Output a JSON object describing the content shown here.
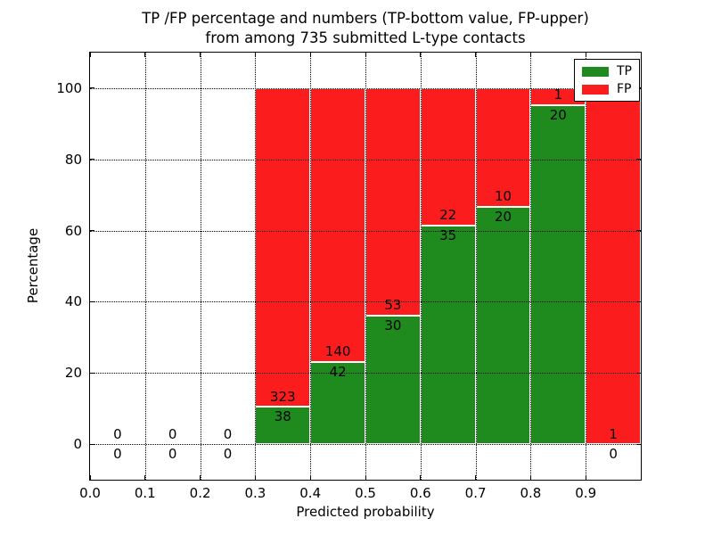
{
  "figure": {
    "title_line1": "TP /FP percentage and numbers (TP-bottom value, FP-upper)",
    "title_line2": "from among 735 submitted L-type contacts"
  },
  "chart_data": {
    "type": "bar",
    "stacked": true,
    "title": "TP /FP percentage and numbers (TP-bottom value, FP-upper) from among 735 submitted L-type contacts",
    "xlabel": "Predicted probability",
    "ylabel": "Percentage",
    "total_submitted": 735,
    "xlim": [
      0.0,
      1.0
    ],
    "ylim": [
      -10,
      110
    ],
    "x_ticks": [
      0.0,
      0.1,
      0.2,
      0.3,
      0.4,
      0.5,
      0.6,
      0.7,
      0.8,
      0.9
    ],
    "x_tick_labels": [
      "0.0",
      "0.1",
      "0.2",
      "0.3",
      "0.4",
      "0.5",
      "0.6",
      "0.7",
      "0.8",
      "0.9"
    ],
    "y_ticks": [
      0,
      20,
      40,
      60,
      80,
      100
    ],
    "y_tick_labels": [
      "0",
      "20",
      "40",
      "60",
      "80",
      "100"
    ],
    "grid": true,
    "legend": {
      "position": "upper right",
      "entries": [
        {
          "label": "TP",
          "color": "#1f8b1f"
        },
        {
          "label": "FP",
          "color": "#fb1d1d"
        }
      ]
    },
    "colors": {
      "tp": "#1f8b1f",
      "fp": "#fb1d1d",
      "bar_edge": "#ffffff"
    },
    "bins": [
      {
        "range": [
          0.0,
          0.1
        ],
        "tp": 0,
        "fp": 0
      },
      {
        "range": [
          0.1,
          0.2
        ],
        "tp": 0,
        "fp": 0
      },
      {
        "range": [
          0.2,
          0.3
        ],
        "tp": 0,
        "fp": 0
      },
      {
        "range": [
          0.3,
          0.4
        ],
        "tp": 38,
        "fp": 323
      },
      {
        "range": [
          0.4,
          0.5
        ],
        "tp": 42,
        "fp": 140
      },
      {
        "range": [
          0.5,
          0.6
        ],
        "tp": 30,
        "fp": 53
      },
      {
        "range": [
          0.6,
          0.7
        ],
        "tp": 35,
        "fp": 22
      },
      {
        "range": [
          0.7,
          0.8
        ],
        "tp": 20,
        "fp": 10
      },
      {
        "range": [
          0.8,
          0.9
        ],
        "tp": 20,
        "fp": 1
      },
      {
        "range": [
          0.9,
          1.0
        ],
        "tp": 0,
        "fp": 1
      }
    ],
    "series": [
      {
        "name": "TP",
        "color": "#1f8b1f",
        "values": [
          0,
          0,
          0,
          38,
          42,
          30,
          35,
          20,
          20,
          0
        ]
      },
      {
        "name": "FP",
        "color": "#fb1d1d",
        "values": [
          0,
          0,
          0,
          323,
          140,
          53,
          22,
          10,
          1,
          1
        ]
      }
    ]
  }
}
